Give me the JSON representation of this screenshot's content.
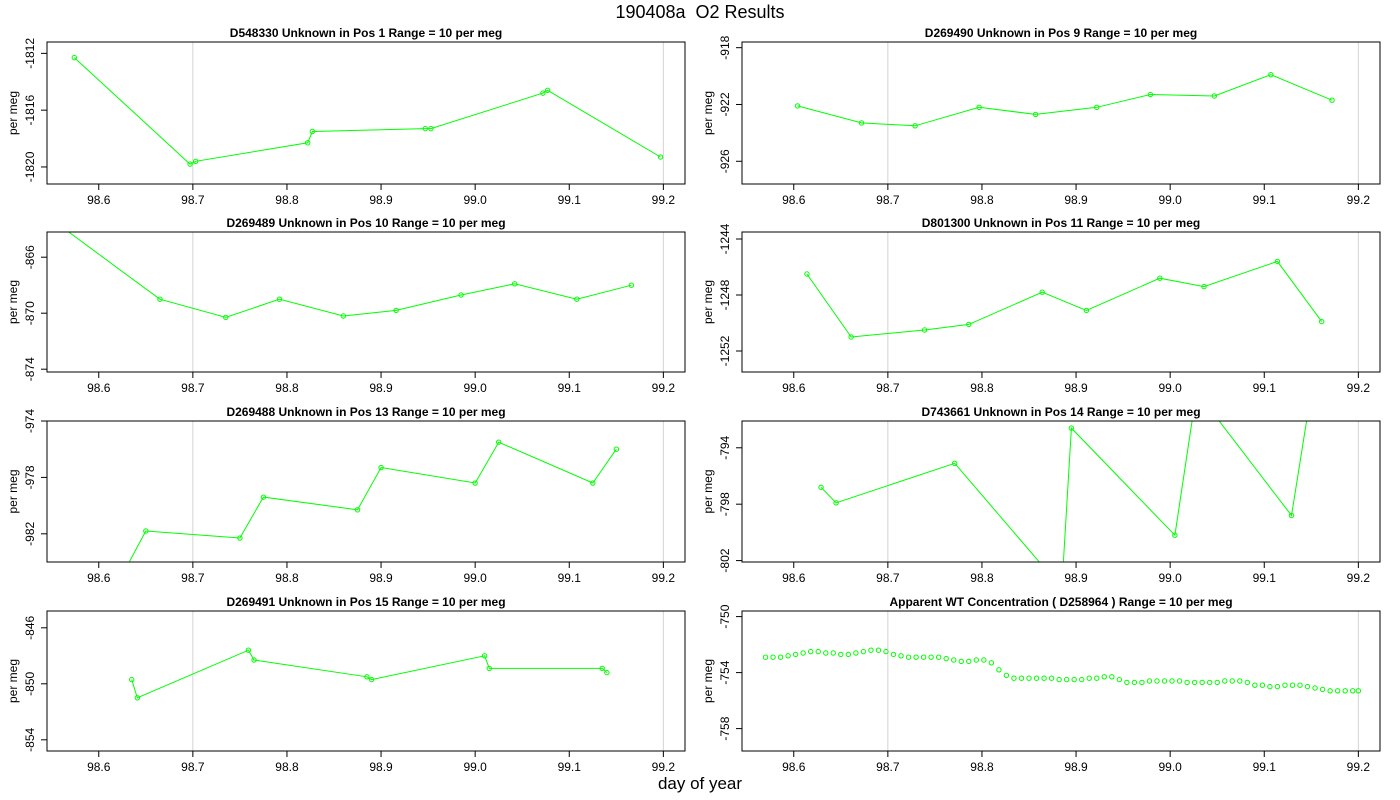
{
  "figure": {
    "title": "190408a  O2 Results",
    "xlabel": "day of year",
    "series_color": "#00ff00",
    "vline_color": "#d3d3d3"
  },
  "chart_data": [
    {
      "type": "line",
      "title": "D548330    Unknown in Pos 1          Range = 10 per meg",
      "ylabel": "per meg",
      "xlim": [
        98.545,
        99.223
      ],
      "ylim": [
        -1821.2,
        -1811.2
      ],
      "xticks": [
        98.6,
        98.7,
        98.8,
        98.9,
        99.0,
        99.1,
        99.2
      ],
      "yticks": [
        -1812,
        -1816,
        -1820
      ],
      "vlines": [
        98.7,
        99.2
      ],
      "x": [
        98.574,
        98.697,
        98.703,
        98.822,
        98.827,
        98.947,
        98.953,
        99.072,
        99.077,
        99.197
      ],
      "y": [
        -1812.3,
        -1819.8,
        -1819.6,
        -1818.3,
        -1817.5,
        -1817.3,
        -1817.3,
        -1814.8,
        -1814.6,
        -1819.3
      ]
    },
    {
      "type": "line",
      "title": "D269490    Unknown in Pos 9          Range = 10 per meg",
      "ylabel": "per meg",
      "xlim": [
        98.545,
        99.223
      ],
      "ylim": [
        -927.6,
        -917.6
      ],
      "xticks": [
        98.6,
        98.7,
        98.8,
        98.9,
        99.0,
        99.1,
        99.2
      ],
      "yticks": [
        -918,
        -922,
        -926
      ],
      "vlines": [
        98.7,
        99.2
      ],
      "x": [
        98.604,
        98.672,
        98.729,
        98.797,
        98.857,
        98.922,
        98.979,
        99.047,
        99.107,
        99.172
      ],
      "y": [
        -922.1,
        -923.3,
        -923.5,
        -922.2,
        -922.7,
        -922.2,
        -921.3,
        -921.4,
        -919.9,
        -921.7
      ]
    },
    {
      "type": "line",
      "title": "D269489    Unknown in Pos 10          Range = 10 per meg",
      "ylabel": "per meg",
      "xlim": [
        98.545,
        99.223
      ],
      "ylim": [
        -874.2,
        -864.2
      ],
      "xticks": [
        98.6,
        98.7,
        98.8,
        98.9,
        99.0,
        99.1,
        99.2
      ],
      "yticks": [
        -866,
        -870,
        -874
      ],
      "vlines": [
        98.7,
        99.2
      ],
      "x": [
        98.558,
        98.665,
        98.735,
        98.792,
        98.86,
        98.916,
        98.985,
        99.042,
        99.108,
        99.166
      ],
      "y": [
        -863.7,
        -869.0,
        -870.3,
        -869.0,
        -870.2,
        -869.8,
        -868.7,
        -867.9,
        -869.0,
        -868.0
      ]
    },
    {
      "type": "line",
      "title": "D801300    Unknown in Pos 11          Range = 10 per meg",
      "ylabel": "per meg",
      "xlim": [
        98.545,
        99.223
      ],
      "ylim": [
        -1253.5,
        -1243.5
      ],
      "xticks": [
        98.6,
        98.7,
        98.8,
        98.9,
        99.0,
        99.1,
        99.2
      ],
      "yticks": [
        -1244,
        -1248,
        -1252
      ],
      "vlines": [
        98.7,
        99.2
      ],
      "x": [
        98.614,
        98.661,
        98.739,
        98.786,
        98.864,
        98.911,
        98.989,
        99.036,
        99.114,
        99.161
      ],
      "y": [
        -1246.5,
        -1251.0,
        -1250.5,
        -1250.1,
        -1247.8,
        -1249.1,
        -1246.8,
        -1247.4,
        -1245.6,
        -1249.9
      ]
    },
    {
      "type": "line",
      "title": "D269488    Unknown in Pos 13          Range = 10 per meg",
      "ylabel": "per meg",
      "xlim": [
        98.545,
        99.223
      ],
      "ylim": [
        -984.0,
        -974.0
      ],
      "xticks": [
        98.6,
        98.7,
        98.8,
        98.9,
        99.0,
        99.1,
        99.2
      ],
      "yticks": [
        -974,
        -978,
        -982
      ],
      "vlines": [
        98.7,
        99.2
      ],
      "x": [
        98.63,
        98.65,
        98.75,
        98.775,
        98.875,
        98.9,
        99.0,
        99.025,
        99.125,
        99.15
      ],
      "y": [
        -984.3,
        -981.8,
        -982.3,
        -979.4,
        -980.3,
        -977.3,
        -978.4,
        -975.5,
        -978.4,
        -976.0
      ]
    },
    {
      "type": "line",
      "title": "D743661    Unknown in Pos 14          Range = 10 per meg",
      "ylabel": "per meg",
      "xlim": [
        98.545,
        99.223
      ],
      "ylim": [
        -802.1,
        -792.1
      ],
      "xticks": [
        98.6,
        98.7,
        98.8,
        98.9,
        99.0,
        99.1,
        99.2
      ],
      "yticks": [
        -794,
        -798,
        -802
      ],
      "vlines": [
        98.7,
        99.2
      ],
      "x": [
        98.629,
        98.645,
        98.771,
        98.866,
        98.883,
        98.895,
        99.005,
        99.028,
        99.129,
        99.15
      ],
      "y": [
        -796.8,
        -797.9,
        -795.1,
        -802.5,
        -806.0,
        -792.6,
        -800.2,
        -790.0,
        -798.8,
        -790.0
      ]
    },
    {
      "type": "line",
      "title": "D269491    Unknown in Pos 15          Range = 10 per meg",
      "ylabel": "per meg",
      "xlim": [
        98.545,
        99.223
      ],
      "ylim": [
        -854.8,
        -844.8
      ],
      "xticks": [
        98.6,
        98.7,
        98.8,
        98.9,
        99.0,
        99.1,
        99.2
      ],
      "yticks": [
        -846,
        -850,
        -854
      ],
      "vlines": [
        98.7,
        99.2
      ],
      "x": [
        98.635,
        98.641,
        98.759,
        98.765,
        98.885,
        98.89,
        99.01,
        99.015,
        99.135,
        99.14
      ],
      "y": [
        -849.7,
        -851.0,
        -847.6,
        -848.3,
        -849.5,
        -849.7,
        -848.0,
        -848.9,
        -848.9,
        -849.2
      ]
    },
    {
      "type": "scatter",
      "title": "Apparent WT Concentration ( D258964 )          Range = 10 per meg",
      "ylabel": "per meg",
      "xlim": [
        98.545,
        99.223
      ],
      "ylim": [
        -759.6,
        -749.6
      ],
      "xticks": [
        98.6,
        98.7,
        98.8,
        98.9,
        99.0,
        99.1,
        99.2
      ],
      "yticks": [
        -750,
        -754,
        -758
      ],
      "vlines": [
        98.7,
        99.2
      ],
      "x": [
        98.57,
        98.578,
        98.586,
        98.594,
        98.602,
        98.61,
        98.618,
        98.626,
        98.634,
        98.642,
        98.65,
        98.658,
        98.666,
        98.674,
        98.682,
        98.69,
        98.698,
        98.706,
        98.714,
        98.722,
        98.73,
        98.738,
        98.746,
        98.754,
        98.762,
        98.77,
        98.778,
        98.786,
        98.794,
        98.802,
        98.81,
        98.818,
        98.826,
        98.834,
        98.842,
        98.85,
        98.858,
        98.866,
        98.874,
        98.882,
        98.89,
        98.898,
        98.906,
        98.914,
        98.922,
        98.93,
        98.938,
        98.946,
        98.954,
        98.962,
        98.97,
        98.978,
        98.986,
        98.994,
        99.002,
        99.01,
        99.018,
        99.026,
        99.034,
        99.042,
        99.05,
        99.058,
        99.066,
        99.074,
        99.082,
        99.09,
        99.098,
        99.106,
        99.114,
        99.122,
        99.13,
        99.138,
        99.146,
        99.154,
        99.162,
        99.17,
        99.178,
        99.186,
        99.194,
        99.2
      ],
      "y": [
        -752.9,
        -752.9,
        -752.9,
        -752.8,
        -752.7,
        -752.6,
        -752.5,
        -752.5,
        -752.6,
        -752.6,
        -752.7,
        -752.7,
        -752.6,
        -752.5,
        -752.4,
        -752.4,
        -752.5,
        -752.7,
        -752.8,
        -752.9,
        -752.9,
        -752.9,
        -752.9,
        -752.9,
        -753.0,
        -753.1,
        -753.2,
        -753.2,
        -753.1,
        -753.1,
        -753.3,
        -753.8,
        -754.2,
        -754.4,
        -754.4,
        -754.4,
        -754.4,
        -754.4,
        -754.4,
        -754.5,
        -754.5,
        -754.5,
        -754.5,
        -754.4,
        -754.4,
        -754.3,
        -754.3,
        -754.5,
        -754.7,
        -754.7,
        -754.7,
        -754.6,
        -754.6,
        -754.6,
        -754.6,
        -754.6,
        -754.7,
        -754.7,
        -754.7,
        -754.7,
        -754.7,
        -754.6,
        -754.6,
        -754.6,
        -754.7,
        -754.9,
        -754.9,
        -755.0,
        -755.0,
        -754.9,
        -754.9,
        -754.9,
        -755.0,
        -755.1,
        -755.2,
        -755.3,
        -755.3,
        -755.3,
        -755.3,
        -755.3
      ]
    }
  ]
}
